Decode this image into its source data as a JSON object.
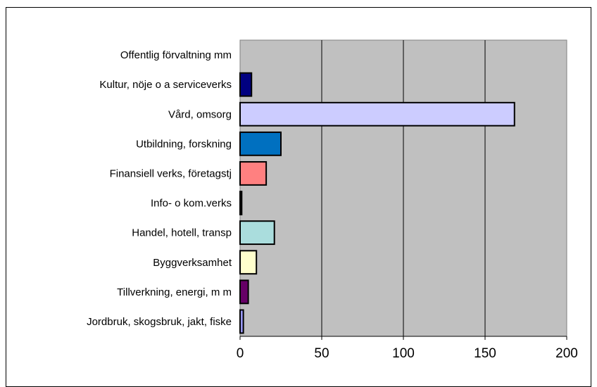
{
  "chart_data": {
    "type": "bar",
    "orientation": "horizontal",
    "title": "",
    "xlabel": "",
    "ylabel": "",
    "categories": [
      "Offentlig förvaltning mm",
      "Kultur, nöje o a serviceverks",
      "Vård, omsorg",
      "Utbildning, forskning",
      "Finansiell verks, företagstj",
      "Info- o kom.verks",
      "Handel, hotell, transp",
      "Byggverksamhet",
      "Tillverkning, energi, m m",
      "Jordbruk, skogsbruk, jakt, fiske"
    ],
    "values": [
      0,
      7,
      168,
      25,
      16,
      1,
      21,
      10,
      5,
      2
    ],
    "bar_colors": [
      "#9999ff",
      "#000080",
      "#ccccff",
      "#0070c0",
      "#ff8080",
      "#000000",
      "#aadddd",
      "#ffffcc",
      "#660066",
      "#9999ff"
    ],
    "xlim": [
      0,
      200
    ],
    "xticks": [
      "0",
      "50",
      "100",
      "150",
      "200"
    ],
    "grid": true,
    "plot_background": "#c0c0c0",
    "legend": "none"
  }
}
